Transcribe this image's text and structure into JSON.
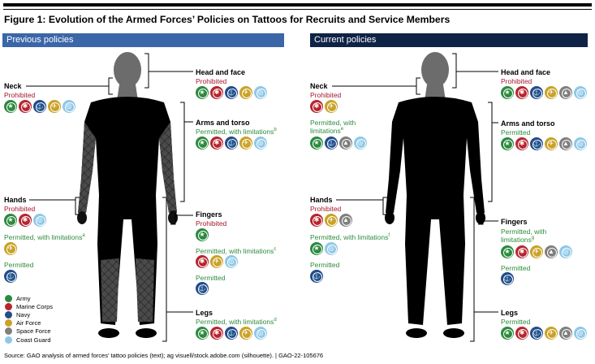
{
  "figure_title": "Figure 1: Evolution of the Armed Forces’ Policies on Tattoos for Recruits and Service Members",
  "panels": {
    "previous": {
      "title": "Previous policies",
      "head_face": {
        "label": "Head and face",
        "status": "Prohibited",
        "icons": [
          "army",
          "marine-corps",
          "navy",
          "air-force",
          "coast-guard"
        ]
      },
      "neck": {
        "label": "Neck",
        "status": "Prohibited",
        "icons": [
          "army",
          "marine-corps",
          "navy",
          "air-force",
          "coast-guard"
        ]
      },
      "arms_torso": {
        "label": "Arms and torso",
        "status": "Permitted, with limitations",
        "note": "b",
        "icons": [
          "army",
          "marine-corps",
          "navy",
          "air-force",
          "coast-guard"
        ]
      },
      "hands": {
        "label": "Hands",
        "status1": "Prohibited",
        "icons1": [
          "army",
          "marine-corps",
          "coast-guard"
        ],
        "status2": "Permitted, with limitations",
        "note2": "a",
        "icons2": [
          "air-force"
        ],
        "status3": "Permitted",
        "icons3": [
          "navy"
        ]
      },
      "fingers": {
        "label": "Fingers",
        "status1": "Prohibited",
        "icons1": [
          "army"
        ],
        "status2": "Permitted, with limitations",
        "note2": "c",
        "icons2": [
          "marine-corps",
          "air-force",
          "coast-guard"
        ],
        "status3": "Permitted",
        "icons3": [
          "navy"
        ]
      },
      "legs": {
        "label": "Legs",
        "status": "Permitted, with limitations",
        "note": "d",
        "icons": [
          "army",
          "marine-corps",
          "navy",
          "air-force",
          "coast-guard"
        ]
      }
    },
    "current": {
      "title": "Current policies",
      "head_face": {
        "label": "Head and face",
        "status": "Prohibited",
        "icons": [
          "army",
          "marine-corps",
          "navy",
          "air-force",
          "space-force",
          "coast-guard"
        ]
      },
      "neck": {
        "label": "Neck",
        "status1": "Prohibited",
        "icons1": [
          "marine-corps",
          "air-force"
        ],
        "status2": "Permitted, with limitations",
        "note2": "e",
        "icons2": [
          "army",
          "navy",
          "space-force",
          "coast-guard"
        ]
      },
      "arms_torso": {
        "label": "Arms and torso",
        "status": "Permitted",
        "icons": [
          "army",
          "marine-corps",
          "navy",
          "air-force",
          "space-force",
          "coast-guard"
        ]
      },
      "hands": {
        "label": "Hands",
        "status1": "Prohibited",
        "icons1": [
          "marine-corps",
          "air-force",
          "space-force"
        ],
        "status2": "Permitted, with limitations",
        "note2": "f",
        "icons2": [
          "army",
          "coast-guard"
        ],
        "status3": "Permitted",
        "icons3": [
          "navy"
        ]
      },
      "fingers": {
        "label": "Fingers",
        "status": "Permitted, with limitations",
        "note": "g",
        "icons": [
          "army",
          "marine-corps",
          "air-force",
          "space-force",
          "coast-guard"
        ],
        "status2": "Permitted",
        "icons2": [
          "navy"
        ]
      },
      "legs": {
        "label": "Legs",
        "status": "Permitted",
        "icons": [
          "army",
          "marine-corps",
          "navy",
          "air-force",
          "space-force",
          "coast-guard"
        ]
      }
    }
  },
  "legend": [
    {
      "key": "army",
      "label": "Army",
      "color": "#2b8a3e"
    },
    {
      "key": "marine-corps",
      "label": "Marine Corps",
      "color": "#b7252f"
    },
    {
      "key": "navy",
      "label": "Navy",
      "color": "#224c8c"
    },
    {
      "key": "air-force",
      "label": "Air Force",
      "color": "#c9a227"
    },
    {
      "key": "space-force",
      "label": "Space Force",
      "color": "#7f7f7f"
    },
    {
      "key": "coast-guard",
      "label": "Coast Guard",
      "color": "#8ec8e8"
    }
  ],
  "colors": {
    "prohibited": "#a3172b",
    "permitted": "#2d8b3c",
    "previous_banner": "#3b66a8",
    "current_banner": "#0f2346"
  },
  "source": "Source: GAO analysis of armed forces’ tattoo policies (text); ag visuell/stock.adobe.com (silhouette).  |  GAO-22-105676"
}
